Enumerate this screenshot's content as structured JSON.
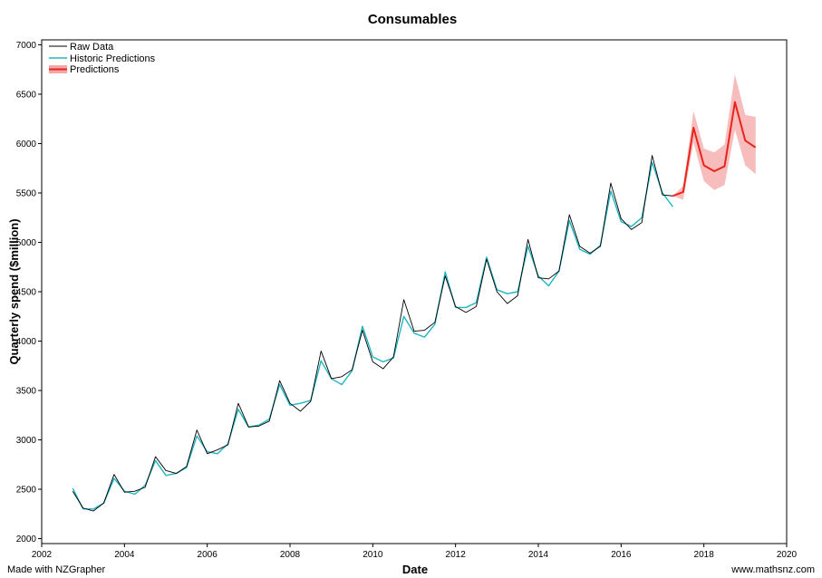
{
  "footer": {
    "left": "Made with NZGrapher",
    "right": "www.mathsnz.com"
  },
  "colors": {
    "raw": "#000000",
    "historic": "#1fb5c2",
    "prediction": "#e8241c",
    "band": "#f4a7a7"
  },
  "chart_data": {
    "type": "line",
    "title": "Consumables",
    "xlabel": "Date",
    "ylabel": "Quarterly spend ($million)",
    "xlim": [
      2002,
      2020
    ],
    "ylim": [
      1950,
      7050
    ],
    "xticks": [
      2002,
      2004,
      2006,
      2008,
      2010,
      2012,
      2014,
      2016,
      2018,
      2020
    ],
    "yticks": [
      2000,
      2500,
      3000,
      3500,
      4000,
      4500,
      5000,
      5500,
      6000,
      6500,
      7000
    ],
    "grid": false,
    "legend_position": "top-left",
    "legend": [
      "Raw Data",
      "Historic Predictions",
      "Predictions"
    ],
    "series": [
      {
        "name": "Raw Data",
        "x": [
          2002.75,
          2003.0,
          2003.25,
          2003.5,
          2003.75,
          2004.0,
          2004.25,
          2004.5,
          2004.75,
          2005.0,
          2005.25,
          2005.5,
          2005.75,
          2006.0,
          2006.25,
          2006.5,
          2006.75,
          2007.0,
          2007.25,
          2007.5,
          2007.75,
          2008.0,
          2008.25,
          2008.5,
          2008.75,
          2009.0,
          2009.25,
          2009.5,
          2009.75,
          2010.0,
          2010.25,
          2010.5,
          2010.75,
          2011.0,
          2011.25,
          2011.5,
          2011.75,
          2012.0,
          2012.25,
          2012.5,
          2012.75,
          2013.0,
          2013.25,
          2013.5,
          2013.75,
          2014.0,
          2014.25,
          2014.5,
          2014.75,
          2015.0,
          2015.25,
          2015.5,
          2015.75,
          2016.0,
          2016.25,
          2016.5,
          2016.75,
          2017.0,
          2017.25
        ],
        "y": [
          2480,
          2310,
          2280,
          2360,
          2650,
          2470,
          2480,
          2520,
          2830,
          2690,
          2660,
          2730,
          3100,
          2860,
          2900,
          2950,
          3370,
          3130,
          3140,
          3190,
          3600,
          3370,
          3290,
          3390,
          3900,
          3620,
          3640,
          3710,
          4110,
          3790,
          3720,
          3840,
          4420,
          4100,
          4110,
          4190,
          4660,
          4350,
          4290,
          4350,
          4830,
          4500,
          4380,
          4460,
          5030,
          4640,
          4630,
          4710,
          5280,
          4960,
          4890,
          4960,
          5600,
          5240,
          5130,
          5200,
          5880,
          5480,
          5470
        ]
      },
      {
        "name": "Historic Predictions",
        "x": [
          2002.75,
          2003.0,
          2003.25,
          2003.5,
          2003.75,
          2004.0,
          2004.25,
          2004.5,
          2004.75,
          2005.0,
          2005.25,
          2005.5,
          2005.75,
          2006.0,
          2006.25,
          2006.5,
          2006.75,
          2007.0,
          2007.25,
          2007.5,
          2007.75,
          2008.0,
          2008.25,
          2008.5,
          2008.75,
          2009.0,
          2009.25,
          2009.5,
          2009.75,
          2010.0,
          2010.25,
          2010.5,
          2010.75,
          2011.0,
          2011.25,
          2011.5,
          2011.75,
          2012.0,
          2012.25,
          2012.5,
          2012.75,
          2013.0,
          2013.25,
          2013.5,
          2013.75,
          2014.0,
          2014.25,
          2014.5,
          2014.75,
          2015.0,
          2015.25,
          2015.5,
          2015.75,
          2016.0,
          2016.25,
          2016.5,
          2016.75,
          2017.0,
          2017.25
        ],
        "y": [
          2510,
          2300,
          2300,
          2360,
          2610,
          2480,
          2450,
          2540,
          2790,
          2640,
          2660,
          2720,
          3040,
          2880,
          2860,
          2960,
          3310,
          3130,
          3150,
          3210,
          3560,
          3350,
          3370,
          3400,
          3800,
          3620,
          3560,
          3700,
          4150,
          3840,
          3790,
          3830,
          4250,
          4080,
          4040,
          4170,
          4700,
          4340,
          4340,
          4390,
          4850,
          4520,
          4480,
          4500,
          4960,
          4660,
          4560,
          4710,
          5220,
          4930,
          4880,
          4970,
          5520,
          5210,
          5160,
          5250,
          5810,
          5500,
          5360
        ]
      },
      {
        "name": "Predictions",
        "x": [
          2017.25,
          2017.5,
          2017.75,
          2018.0,
          2018.25,
          2018.5,
          2018.75,
          2019.0,
          2019.25
        ],
        "y": [
          5470,
          5510,
          6160,
          5780,
          5720,
          5770,
          6420,
          6030,
          5960
        ],
        "lower": [
          5470,
          5430,
          6010,
          5620,
          5530,
          5580,
          6140,
          5780,
          5690
        ],
        "upper": [
          5470,
          5570,
          6330,
          5950,
          5910,
          5990,
          6700,
          6290,
          6270
        ]
      }
    ]
  }
}
